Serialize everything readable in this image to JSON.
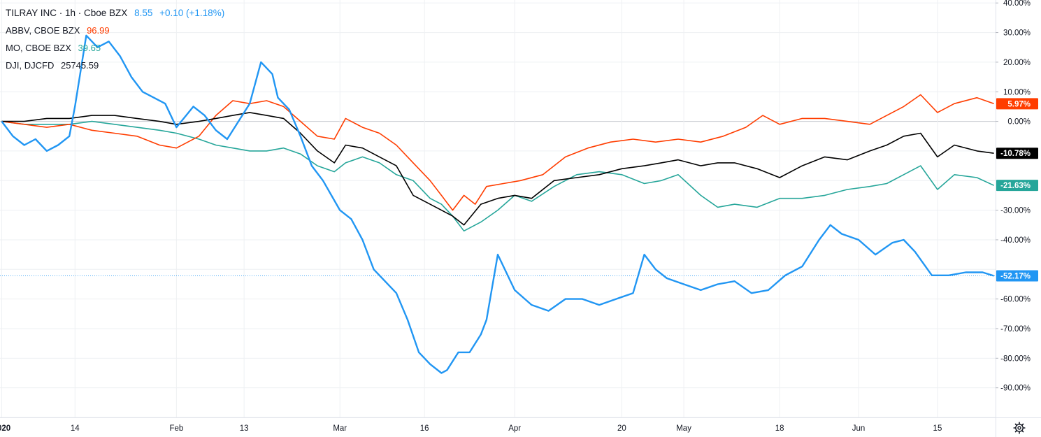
{
  "chart_data": {
    "type": "line",
    "yaxis_unit": "%",
    "yaxis_side": "right",
    "ylim": [
      -100,
      41
    ],
    "yticks": [
      40,
      30,
      20,
      10,
      0,
      -30,
      -40,
      -60,
      -70,
      -80,
      -90
    ],
    "ytick_labels": [
      "40.00%",
      "30.00%",
      "20.00%",
      "10.00%",
      "0.00%",
      "-30.00%",
      "-40.00%",
      "-60.00%",
      "-70.00%",
      "-80.00%",
      "-90.00%"
    ],
    "grid": true,
    "xlim": [
      "2020-01-01",
      "2020-06-25"
    ],
    "xticks": [
      {
        "date": "2020-01-01",
        "label": "2020",
        "bold": true
      },
      {
        "date": "2020-01-14",
        "label": "14"
      },
      {
        "date": "2020-02-01",
        "label": "Feb"
      },
      {
        "date": "2020-02-13",
        "label": "13"
      },
      {
        "date": "2020-03-01",
        "label": "Mar"
      },
      {
        "date": "2020-03-16",
        "label": "16"
      },
      {
        "date": "2020-04-01",
        "label": "Apr"
      },
      {
        "date": "2020-04-20",
        "label": "20"
      },
      {
        "date": "2020-05-01",
        "label": "May"
      },
      {
        "date": "2020-05-18",
        "label": "18"
      },
      {
        "date": "2020-06-01",
        "label": "Jun"
      },
      {
        "date": "2020-06-15",
        "label": "15"
      }
    ],
    "series": [
      {
        "name": "TILRAY INC · 1h · Cboe BZX",
        "color": "#2196f3",
        "legend_value": "8.55",
        "legend_change": "+0.10 (+1.18%)",
        "last_label": "-52.17%",
        "dashed_last_line": true,
        "x": [
          "2020-01-01",
          "2020-01-03",
          "2020-01-05",
          "2020-01-07",
          "2020-01-09",
          "2020-01-11",
          "2020-01-13",
          "2020-01-14",
          "2020-01-16",
          "2020-01-18",
          "2020-01-20",
          "2020-01-22",
          "2020-01-24",
          "2020-01-26",
          "2020-01-28",
          "2020-01-30",
          "2020-02-01",
          "2020-02-04",
          "2020-02-06",
          "2020-02-08",
          "2020-02-10",
          "2020-02-12",
          "2020-02-14",
          "2020-02-16",
          "2020-02-18",
          "2020-02-19",
          "2020-02-21",
          "2020-02-23",
          "2020-02-25",
          "2020-02-27",
          "2020-03-01",
          "2020-03-03",
          "2020-03-05",
          "2020-03-07",
          "2020-03-09",
          "2020-03-11",
          "2020-03-13",
          "2020-03-15",
          "2020-03-17",
          "2020-03-19",
          "2020-03-20",
          "2020-03-22",
          "2020-03-24",
          "2020-03-26",
          "2020-03-27",
          "2020-03-29",
          "2020-04-01",
          "2020-04-04",
          "2020-04-07",
          "2020-04-10",
          "2020-04-13",
          "2020-04-16",
          "2020-04-19",
          "2020-04-22",
          "2020-04-24",
          "2020-04-26",
          "2020-04-28",
          "2020-05-01",
          "2020-05-04",
          "2020-05-07",
          "2020-05-10",
          "2020-05-13",
          "2020-05-16",
          "2020-05-19",
          "2020-05-22",
          "2020-05-25",
          "2020-05-27",
          "2020-05-29",
          "2020-06-01",
          "2020-06-04",
          "2020-06-07",
          "2020-06-09",
          "2020-06-11",
          "2020-06-14",
          "2020-06-17",
          "2020-06-20",
          "2020-06-23",
          "2020-06-25"
        ],
        "values": [
          0,
          -5,
          -8,
          -6,
          -10,
          -8,
          -5,
          5,
          29,
          25,
          27,
          22,
          15,
          10,
          8,
          6,
          -2,
          5,
          2,
          -3,
          -6,
          0,
          6,
          20,
          16,
          8,
          4,
          -5,
          -15,
          -20,
          -30,
          -33,
          -40,
          -50,
          -54,
          -58,
          -67,
          -78,
          -82,
          -85,
          -84,
          -78,
          -78,
          -72,
          -67,
          -45,
          -57,
          -62,
          -64,
          -60,
          -60,
          -62,
          -60,
          -58,
          -45,
          -50,
          -53,
          -55,
          -57,
          -55,
          -54,
          -58,
          -57,
          -52,
          -49,
          -40,
          -35,
          -38,
          -40,
          -45,
          -41,
          -40,
          -44,
          -52,
          -52,
          -51,
          -51,
          -52.17
        ]
      },
      {
        "name": "ABBV, CBOE BZX",
        "color": "#ff3d00",
        "legend_value": "96.99",
        "last_label": "5.97%",
        "x": [
          "2020-01-01",
          "2020-01-05",
          "2020-01-09",
          "2020-01-13",
          "2020-01-17",
          "2020-01-21",
          "2020-01-25",
          "2020-01-29",
          "2020-02-01",
          "2020-02-05",
          "2020-02-08",
          "2020-02-11",
          "2020-02-14",
          "2020-02-17",
          "2020-02-20",
          "2020-02-23",
          "2020-02-26",
          "2020-02-29",
          "2020-03-02",
          "2020-03-05",
          "2020-03-08",
          "2020-03-11",
          "2020-03-14",
          "2020-03-17",
          "2020-03-19",
          "2020-03-21",
          "2020-03-23",
          "2020-03-25",
          "2020-03-27",
          "2020-03-30",
          "2020-04-02",
          "2020-04-06",
          "2020-04-10",
          "2020-04-14",
          "2020-04-18",
          "2020-04-22",
          "2020-04-26",
          "2020-04-30",
          "2020-05-04",
          "2020-05-08",
          "2020-05-12",
          "2020-05-15",
          "2020-05-18",
          "2020-05-22",
          "2020-05-26",
          "2020-05-30",
          "2020-06-03",
          "2020-06-06",
          "2020-06-09",
          "2020-06-12",
          "2020-06-15",
          "2020-06-18",
          "2020-06-22",
          "2020-06-25"
        ],
        "values": [
          0,
          -1,
          -2,
          -1,
          -3,
          -4,
          -5,
          -8,
          -9,
          -5,
          2,
          7,
          6,
          7,
          5,
          0,
          -5,
          -6,
          1,
          -2,
          -4,
          -8,
          -14,
          -20,
          -25,
          -30,
          -25,
          -28,
          -22,
          -21,
          -20,
          -18,
          -12,
          -9,
          -7,
          -6,
          -7,
          -6,
          -7,
          -5,
          -2,
          2,
          -1,
          1,
          1,
          0,
          -1,
          2,
          5,
          9,
          3,
          6,
          8,
          5.97
        ]
      },
      {
        "name": "MO, CBOE BZX",
        "color": "#26a69a",
        "legend_value": "39.65",
        "last_label": "-21.63%",
        "x": [
          "2020-01-01",
          "2020-01-05",
          "2020-01-09",
          "2020-01-13",
          "2020-01-17",
          "2020-01-21",
          "2020-01-25",
          "2020-01-29",
          "2020-02-01",
          "2020-02-05",
          "2020-02-08",
          "2020-02-11",
          "2020-02-14",
          "2020-02-17",
          "2020-02-20",
          "2020-02-23",
          "2020-02-26",
          "2020-02-29",
          "2020-03-02",
          "2020-03-05",
          "2020-03-08",
          "2020-03-11",
          "2020-03-14",
          "2020-03-17",
          "2020-03-19",
          "2020-03-21",
          "2020-03-23",
          "2020-03-26",
          "2020-03-29",
          "2020-04-01",
          "2020-04-04",
          "2020-04-08",
          "2020-04-12",
          "2020-04-16",
          "2020-04-20",
          "2020-04-24",
          "2020-04-27",
          "2020-04-30",
          "2020-05-04",
          "2020-05-07",
          "2020-05-10",
          "2020-05-14",
          "2020-05-18",
          "2020-05-22",
          "2020-05-26",
          "2020-05-30",
          "2020-06-03",
          "2020-06-06",
          "2020-06-09",
          "2020-06-12",
          "2020-06-15",
          "2020-06-18",
          "2020-06-22",
          "2020-06-25"
        ],
        "values": [
          0,
          -1,
          -1,
          -1,
          0,
          -1,
          -2,
          -3,
          -4,
          -6,
          -8,
          -9,
          -10,
          -10,
          -9,
          -11,
          -15,
          -17,
          -14,
          -12,
          -14,
          -18,
          -20,
          -26,
          -28,
          -32,
          -37,
          -34,
          -30,
          -25,
          -27,
          -22,
          -18,
          -17,
          -18,
          -21,
          -20,
          -18,
          -25,
          -29,
          -28,
          -29,
          -26,
          -26,
          -25,
          -23,
          -22,
          -21,
          -18,
          -15,
          -23,
          -18,
          -19,
          -21.63
        ]
      },
      {
        "name": "DJI, DJCFD",
        "color": "#000000",
        "legend_value": "25745.59",
        "last_label": "-10.78%",
        "x": [
          "2020-01-01",
          "2020-01-05",
          "2020-01-09",
          "2020-01-13",
          "2020-01-17",
          "2020-01-21",
          "2020-01-25",
          "2020-01-29",
          "2020-02-01",
          "2020-02-05",
          "2020-02-08",
          "2020-02-11",
          "2020-02-14",
          "2020-02-17",
          "2020-02-20",
          "2020-02-23",
          "2020-02-26",
          "2020-02-29",
          "2020-03-02",
          "2020-03-05",
          "2020-03-08",
          "2020-03-11",
          "2020-03-14",
          "2020-03-17",
          "2020-03-19",
          "2020-03-21",
          "2020-03-23",
          "2020-03-26",
          "2020-03-29",
          "2020-04-01",
          "2020-04-04",
          "2020-04-08",
          "2020-04-12",
          "2020-04-16",
          "2020-04-20",
          "2020-04-24",
          "2020-04-27",
          "2020-04-30",
          "2020-05-04",
          "2020-05-07",
          "2020-05-10",
          "2020-05-14",
          "2020-05-18",
          "2020-05-22",
          "2020-05-26",
          "2020-05-30",
          "2020-06-03",
          "2020-06-06",
          "2020-06-09",
          "2020-06-12",
          "2020-06-15",
          "2020-06-18",
          "2020-06-22",
          "2020-06-25"
        ],
        "values": [
          0,
          0,
          1,
          1,
          2,
          2,
          1,
          0,
          -1,
          0,
          1,
          2,
          3,
          2,
          1,
          -4,
          -10,
          -14,
          -8,
          -9,
          -12,
          -15,
          -25,
          -28,
          -30,
          -32,
          -35,
          -28,
          -26,
          -25,
          -26,
          -20,
          -19,
          -18,
          -16,
          -15,
          -14,
          -13,
          -15,
          -14,
          -14,
          -16,
          -19,
          -15,
          -12,
          -13,
          -10,
          -8,
          -5,
          -4,
          -12,
          -8,
          -10,
          -10.78
        ]
      }
    ]
  }
}
